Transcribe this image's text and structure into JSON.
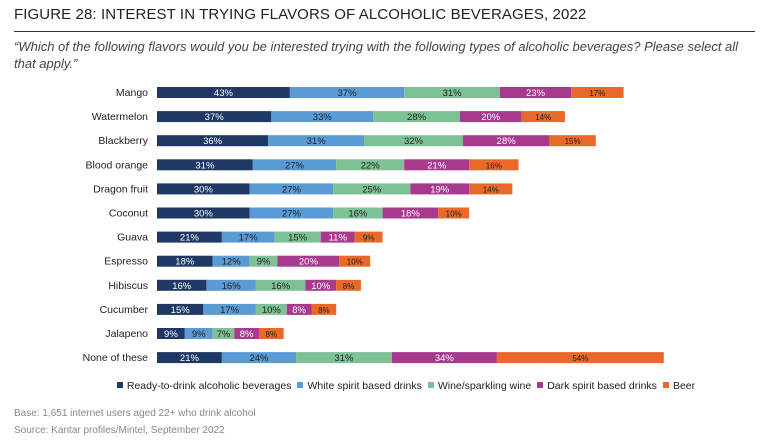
{
  "title": "FIGURE 28: INTEREST IN TRYING FLAVORS OF ALCOHOLIC BEVERAGES, 2022",
  "subtitle": "“Which of the following flavors would you be interested trying with the following types of alcoholic beverages? Please select all that apply.”",
  "base": "Base: 1,651 internet users aged 22+ who drink alcohol",
  "source": "Source: Kantar profiles/Mintel, September 2022",
  "chart_data": {
    "type": "bar",
    "orientation": "horizontal",
    "stacked": true,
    "legend_position": "bottom",
    "grid": false,
    "unit": "%",
    "categories": [
      "Mango",
      "Watermelon",
      "Blackberry",
      "Blood orange",
      "Dragon fruit",
      "Coconut",
      "Guava",
      "Espresso",
      "Hibiscus",
      "Cucumber",
      "Jalapeno",
      "None of these"
    ],
    "series": [
      {
        "name": "Ready-to-drink alcoholic beverages",
        "color": "#1f3864",
        "values": [
          43,
          37,
          36,
          31,
          30,
          30,
          21,
          18,
          16,
          15,
          9,
          21
        ]
      },
      {
        "name": "White spirit based drinks",
        "color": "#5b9bd5",
        "values": [
          37,
          33,
          31,
          27,
          27,
          27,
          17,
          12,
          16,
          17,
          9,
          24
        ]
      },
      {
        "name": "Wine/sparkling wine",
        "color": "#7fc196",
        "values": [
          31,
          28,
          32,
          22,
          25,
          16,
          15,
          9,
          16,
          10,
          7,
          31
        ]
      },
      {
        "name": "Dark spirit based drinks",
        "color": "#a83a8e",
        "values": [
          23,
          20,
          28,
          21,
          19,
          18,
          11,
          20,
          10,
          8,
          8,
          34
        ]
      },
      {
        "name": "Beer",
        "color": "#e8692a",
        "values": [
          17,
          14,
          15,
          16,
          14,
          10,
          9,
          10,
          8,
          8,
          8,
          54
        ]
      }
    ]
  }
}
